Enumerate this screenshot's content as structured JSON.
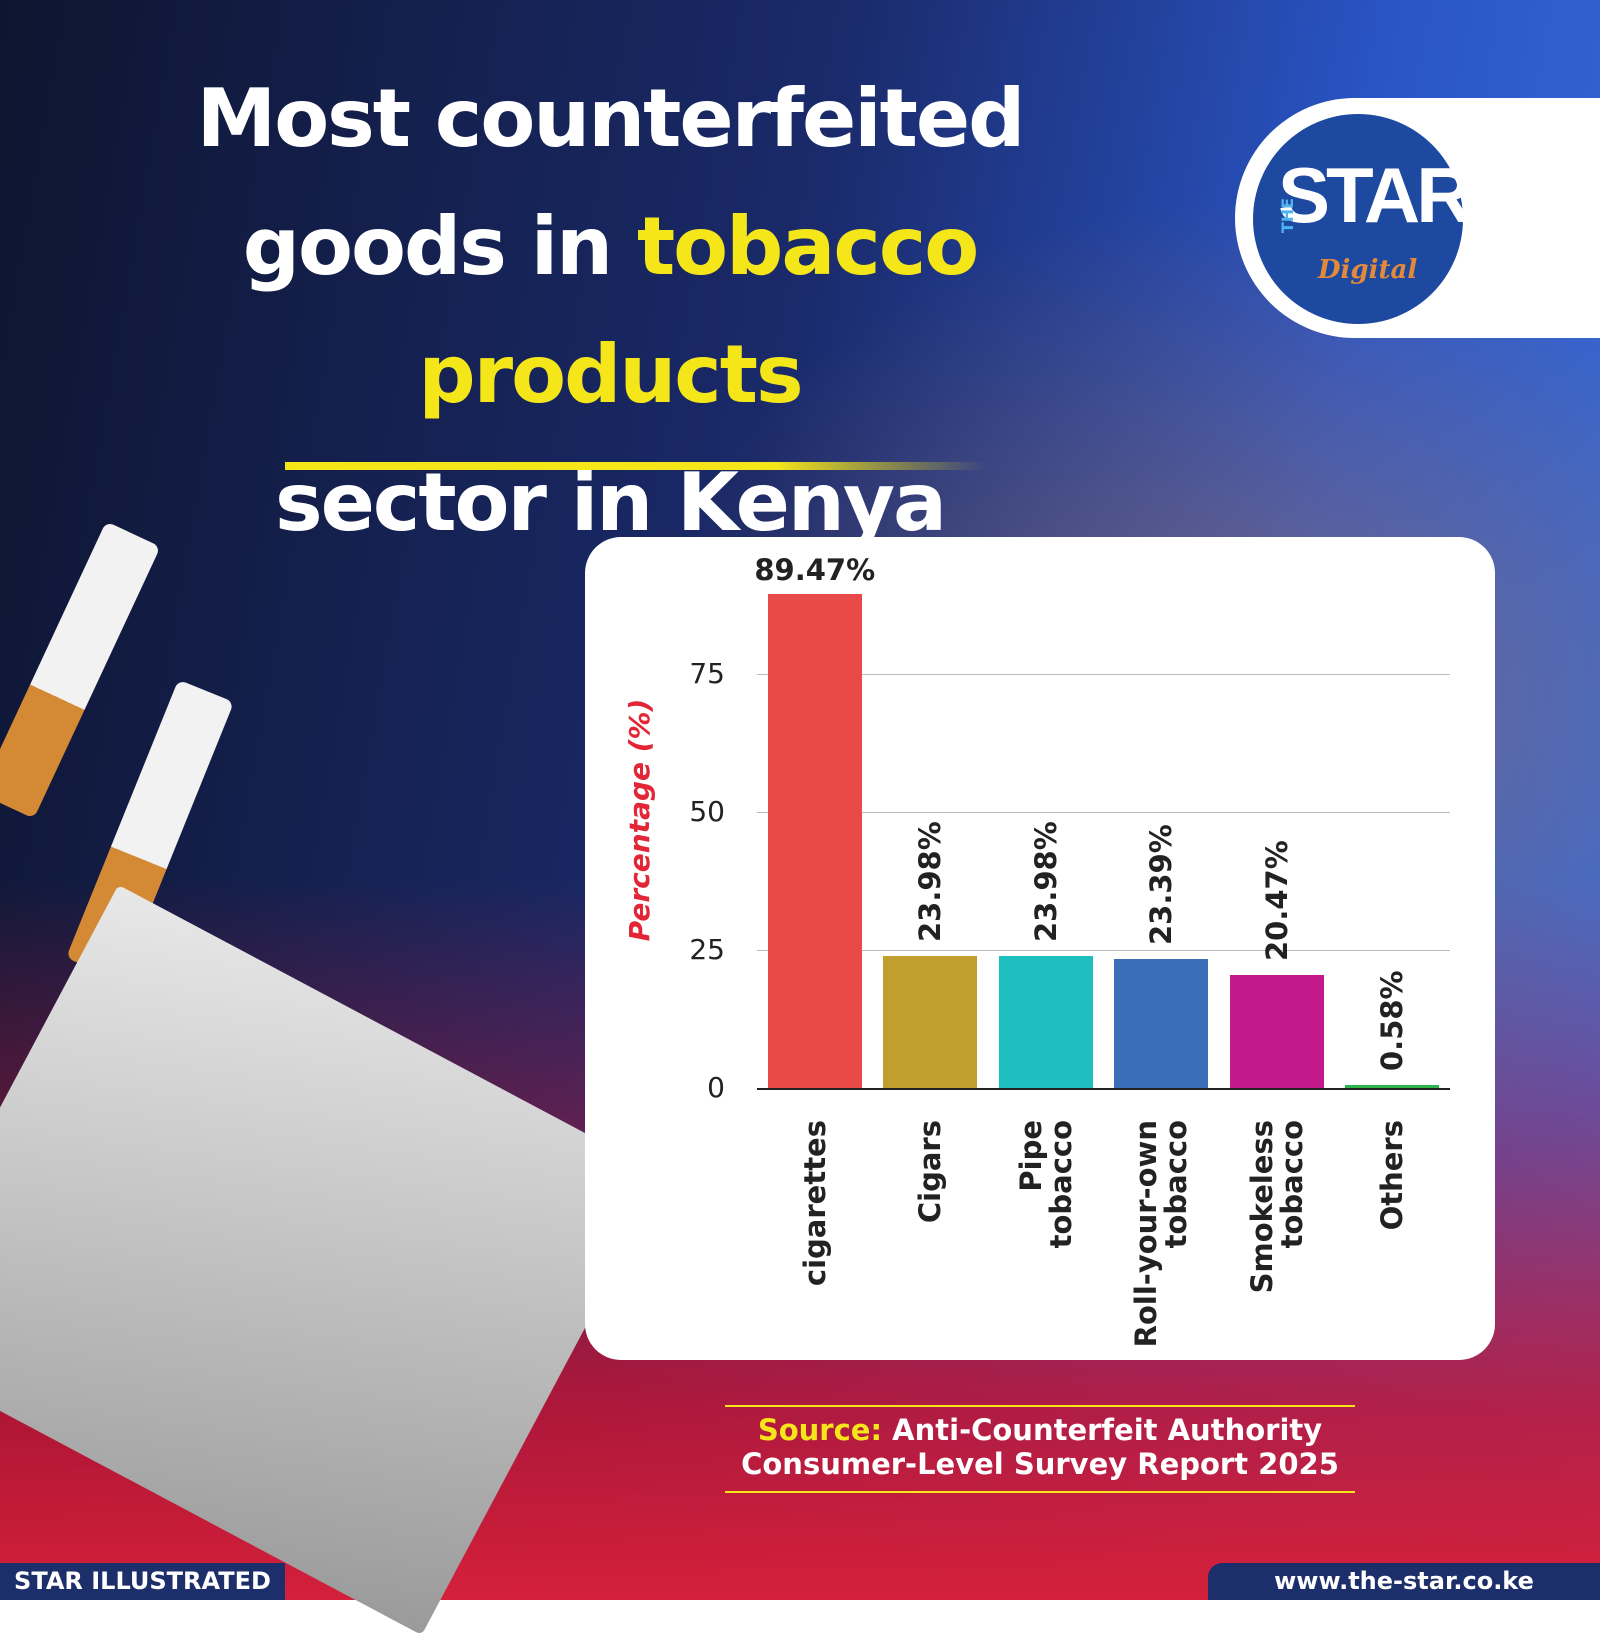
{
  "header": {
    "title_parts": [
      "Most counterfeited",
      "goods in",
      "tobacco products",
      "sector in Kenya"
    ]
  },
  "logo": {
    "the": "THE",
    "star": "STAR",
    "digital": "Digital"
  },
  "chart_data": {
    "type": "bar",
    "y_label": "Percentage (%)",
    "categories": [
      "cigarettes",
      "Cigars",
      "Pipe\ntobacco",
      "Roll-your-own\ntobacco",
      "Smokeless\ntobacco",
      "Others"
    ],
    "values": [
      89.47,
      23.98,
      23.98,
      23.39,
      20.47,
      0.58
    ],
    "value_labels": [
      "89.47%",
      "23.98%",
      "23.98%",
      "23.39%",
      "20.47%",
      "0.58%"
    ],
    "colors": [
      "#e84a4a",
      "#c19f2e",
      "#1fbfbf",
      "#3a6fb8",
      "#c21a8c",
      "#2db34a"
    ],
    "ylim": [
      0,
      90
    ],
    "yticks": [
      0,
      25,
      50,
      75
    ],
    "grid": true
  },
  "source": {
    "label": "Source:",
    "lines": [
      "Anti-Counterfeit Authority",
      "Consumer-Level Survey Report 2025"
    ]
  },
  "footer": {
    "left": "STAR ILLUSTRATED",
    "right": "www.the-star.co.ke"
  }
}
